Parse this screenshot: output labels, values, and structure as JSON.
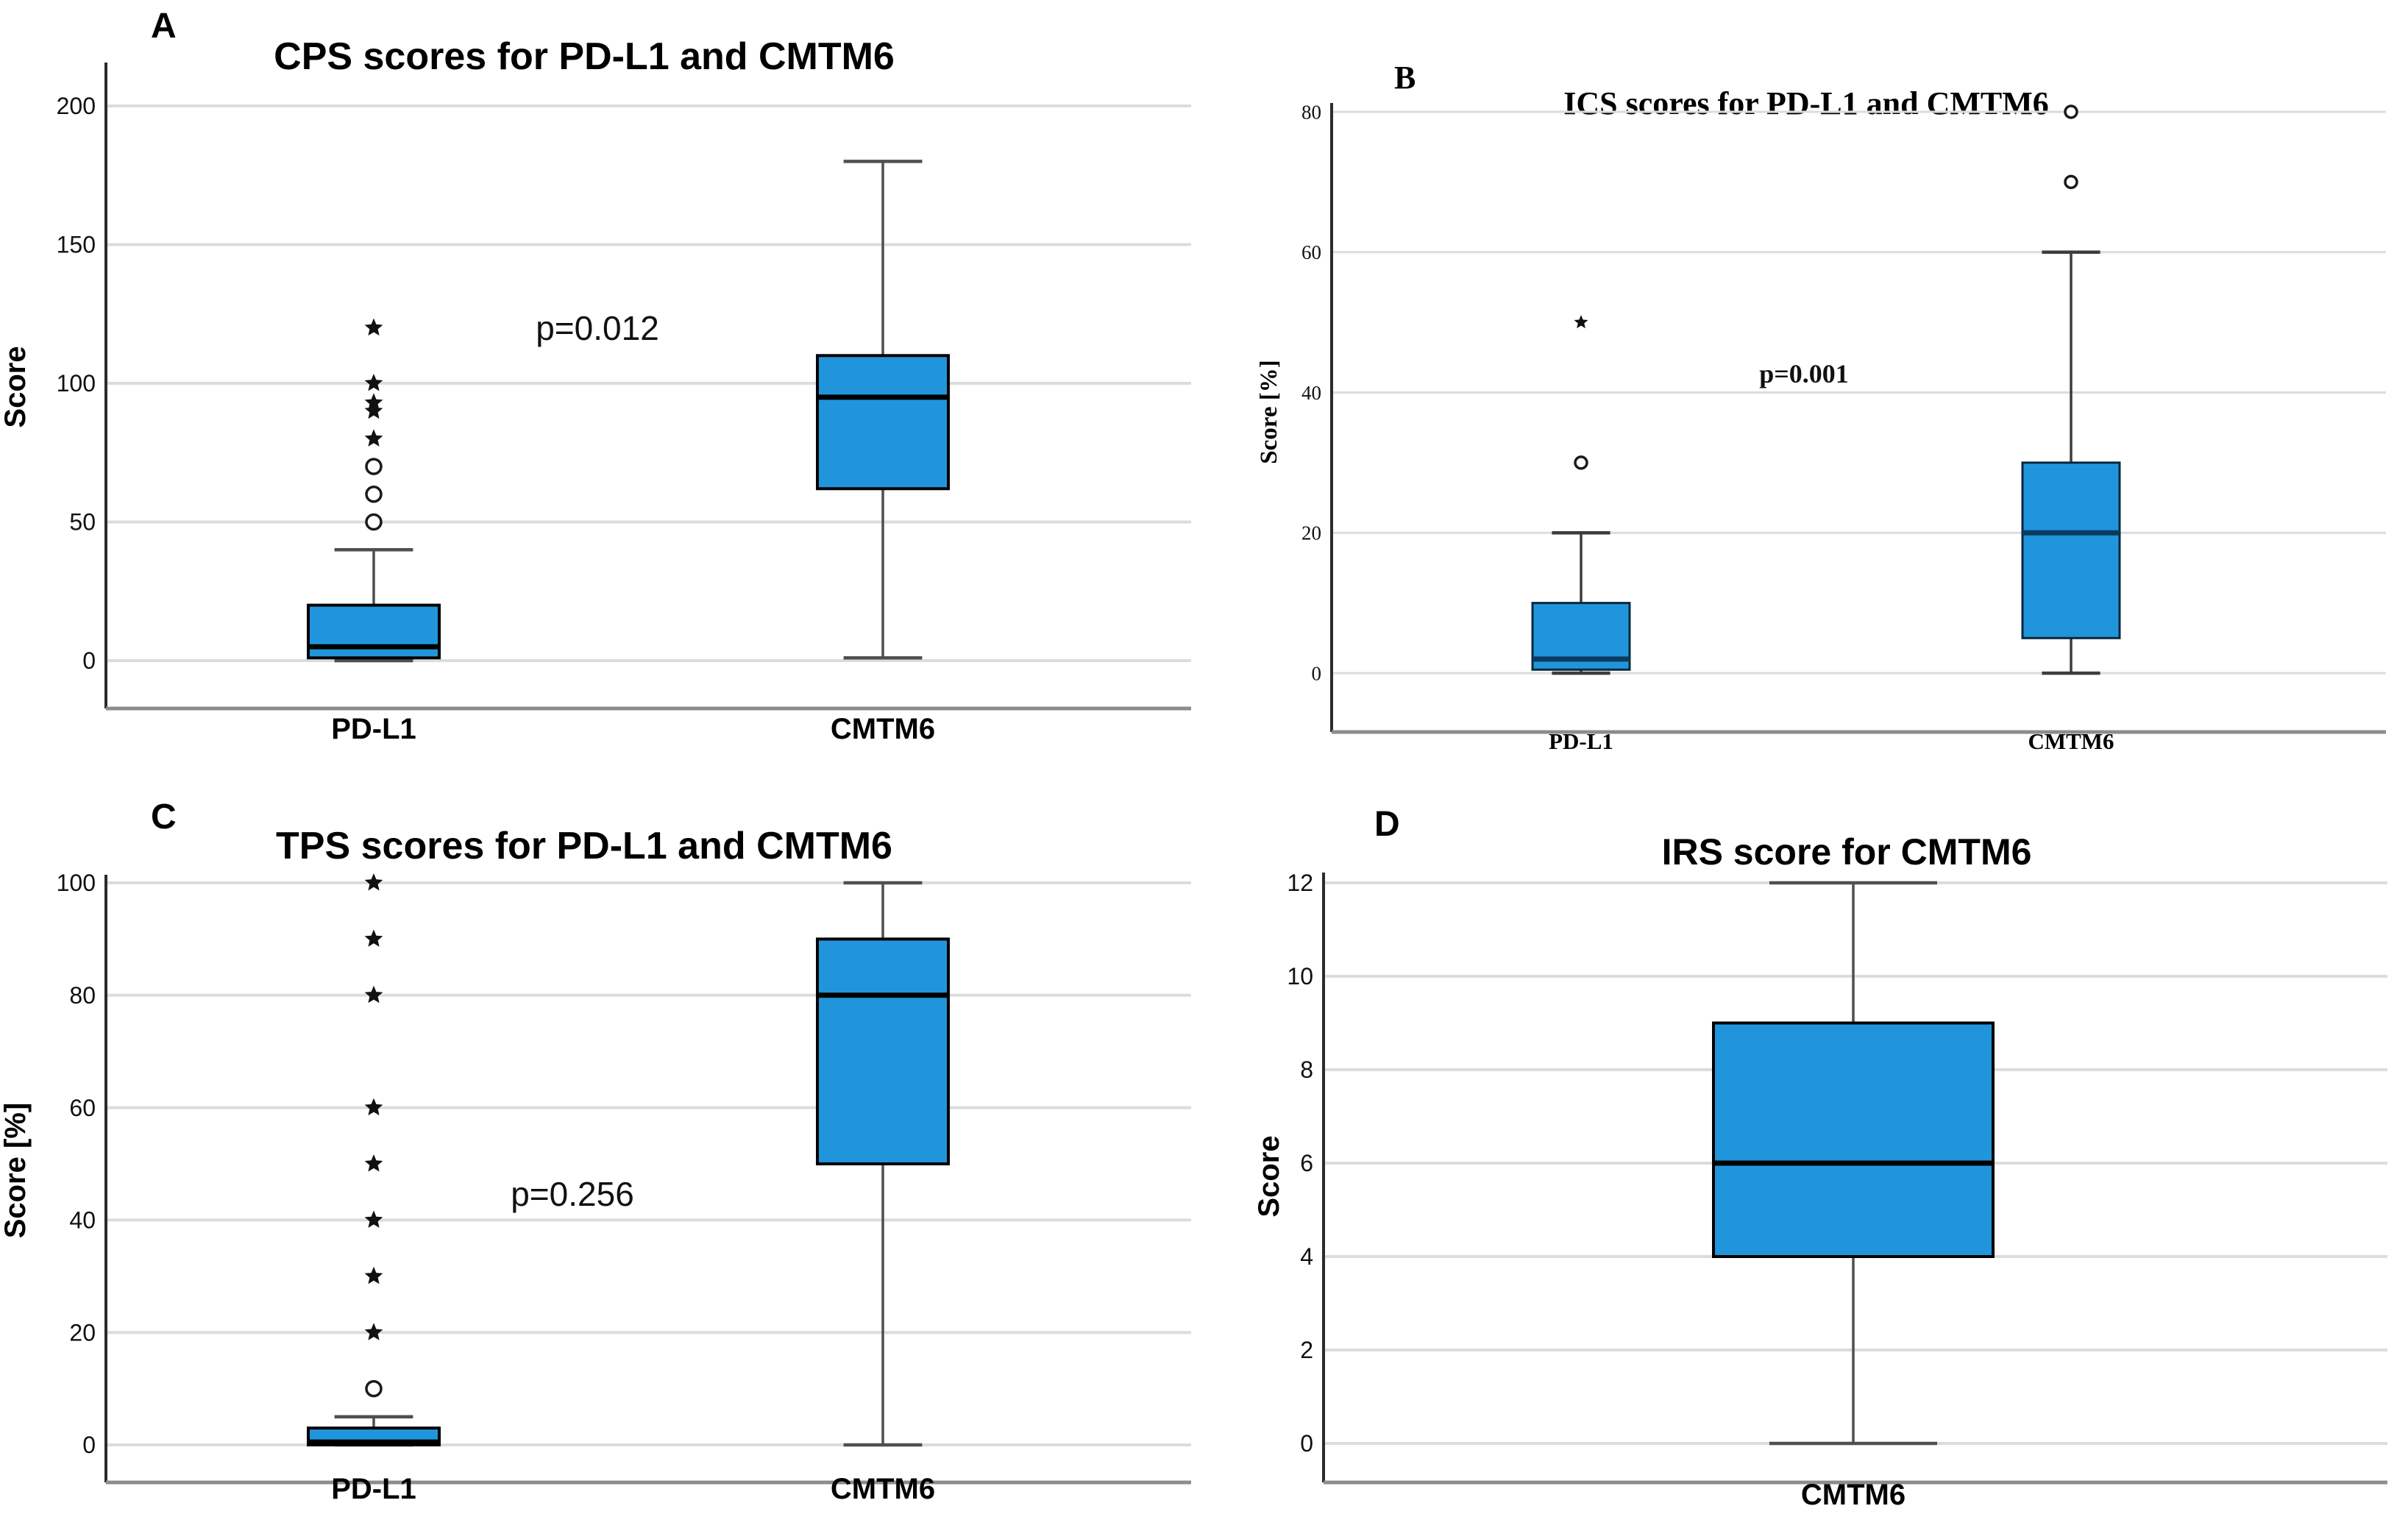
{
  "figure": {
    "background": "#ffffff",
    "description_texts": {
      "pdl1_label": "PD-L1",
      "cmtm6_label": "CMTM6"
    }
  },
  "chart_data": [
    {
      "type": "boxplot",
      "panel_label": "A",
      "title": "CPS scores for PD-L1 and CMTM6",
      "ylabel": "Score",
      "xlabel": "",
      "font_style": "sans",
      "yticks": [
        0,
        50,
        100,
        150,
        200
      ],
      "ylim": [
        -18,
        215
      ],
      "grid": "horizontal",
      "p_label": "p=0.012",
      "categories": [
        "PD-L1",
        "CMTM6"
      ],
      "boxes": [
        {
          "category": "PD-L1",
          "whisker_low": 0,
          "q1": 1,
          "median": 5,
          "q3": 20,
          "whisker_high": 40,
          "outliers_circle": [
            50,
            60,
            70
          ],
          "outliers_star": [
            80,
            90,
            93,
            100,
            120
          ]
        },
        {
          "category": "CMTM6",
          "whisker_low": 1,
          "q1": 62,
          "median": 95,
          "q3": 110,
          "whisker_high": 180,
          "outliers_circle": [],
          "outliers_star": []
        }
      ],
      "colors": {
        "box_fill": "#2095DB",
        "box_stroke": "#000000",
        "median": "#000000",
        "gridline": "#dcdcdc",
        "whisker": "#4f4f4f"
      }
    },
    {
      "type": "boxplot",
      "panel_label": "B",
      "title": "ICS scores for PD-L1 and CMTM6",
      "ylabel": "Score [%]",
      "xlabel": "",
      "font_style": "serif",
      "yticks": [
        0,
        20,
        40,
        60,
        80
      ],
      "ylim": [
        -9,
        87
      ],
      "grid": "horizontal",
      "p_label": "p=0.001",
      "categories": [
        "PD-L1",
        "CMTM6"
      ],
      "boxes": [
        {
          "category": "PD-L1",
          "whisker_low": 0,
          "q1": 0.5,
          "median": 2,
          "q3": 10,
          "whisker_high": 20,
          "outliers_circle": [
            30
          ],
          "outliers_star": [
            50
          ]
        },
        {
          "category": "CMTM6",
          "whisker_low": 0,
          "q1": 5,
          "median": 20,
          "q3": 30,
          "whisker_high": 60,
          "outliers_circle": [
            70,
            80
          ],
          "outliers_star": []
        }
      ],
      "colors": {
        "box_fill": "#2095DB",
        "box_stroke": "#06283D",
        "median": "#0A3A5F",
        "gridline": "#dcdcdc",
        "whisker": "#3d3d3d"
      }
    },
    {
      "type": "boxplot",
      "panel_label": "C",
      "title": "TPS scores for PD-L1 and CMTM6",
      "ylabel": "Score [%]",
      "xlabel": "",
      "font_style": "sans",
      "yticks": [
        0,
        20,
        40,
        60,
        80,
        100
      ],
      "ylim": [
        -9,
        108
      ],
      "grid": "horizontal",
      "p_label": "p=0.256",
      "categories": [
        "PD-L1",
        "CMTM6"
      ],
      "boxes": [
        {
          "category": "PD-L1",
          "whisker_low": 0,
          "q1": 0,
          "median": 0.5,
          "q3": 3,
          "whisker_high": 5,
          "outliers_circle": [
            10
          ],
          "outliers_star": [
            20,
            30,
            40,
            50,
            60,
            80,
            90,
            100
          ]
        },
        {
          "category": "CMTM6",
          "whisker_low": 0,
          "q1": 50,
          "median": 80,
          "q3": 90,
          "whisker_high": 100,
          "outliers_circle": [],
          "outliers_star": []
        }
      ],
      "colors": {
        "box_fill": "#2095DB",
        "box_stroke": "#000000",
        "median": "#000000",
        "gridline": "#dcdcdc",
        "whisker": "#4f4f4f"
      }
    },
    {
      "type": "boxplot",
      "panel_label": "D",
      "title": "IRS score for CMTM6",
      "ylabel": "Score",
      "xlabel": "",
      "font_style": "sans",
      "yticks": [
        0,
        2,
        4,
        6,
        8,
        10,
        12
      ],
      "ylim": [
        -1,
        13
      ],
      "grid": "horizontal",
      "p_label": "",
      "categories": [
        "CMTM6"
      ],
      "boxes": [
        {
          "category": "CMTM6",
          "whisker_low": 0,
          "q1": 4,
          "median": 6,
          "q3": 9,
          "whisker_high": 12,
          "outliers_circle": [],
          "outliers_star": []
        }
      ],
      "colors": {
        "box_fill": "#2095DB",
        "box_stroke": "#000000",
        "median": "#000000",
        "gridline": "#dcdcdc",
        "whisker": "#4f4f4f"
      }
    }
  ]
}
